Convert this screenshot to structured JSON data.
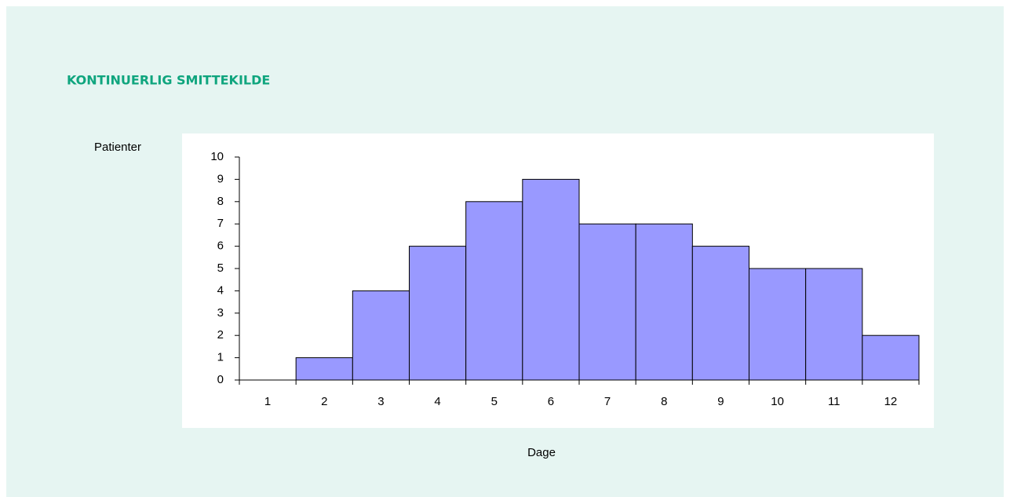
{
  "chart_data": {
    "type": "bar",
    "title": "KONTINUERLIG SMITTEKILDE",
    "ylabel": "Patienter",
    "xlabel": "Dage",
    "categories": [
      "1",
      "2",
      "3",
      "4",
      "5",
      "6",
      "7",
      "8",
      "9",
      "10",
      "11",
      "12"
    ],
    "values": [
      0,
      1,
      4,
      6,
      8,
      9,
      7,
      7,
      6,
      5,
      5,
      2
    ],
    "color": "#9999ff",
    "ylim": [
      0,
      10
    ],
    "yticks": [
      0,
      1,
      2,
      3,
      4,
      5,
      6,
      7,
      8,
      9,
      10
    ],
    "grid": false
  }
}
